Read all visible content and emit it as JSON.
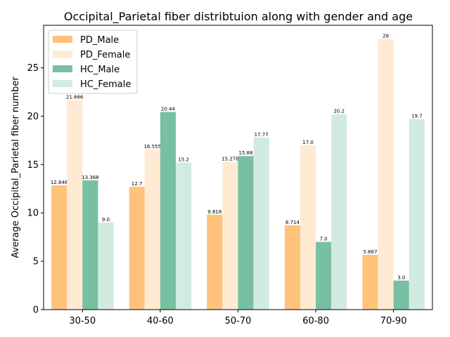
{
  "chart_data": {
    "type": "bar",
    "title": "Occipital_Parietal fiber distribtuion along with gender and age",
    "xlabel": "",
    "ylabel": "Average Occipital_Parietal fiber number",
    "categories": [
      "30-50",
      "40-60",
      "50-70",
      "60-80",
      "70-90"
    ],
    "ylim": [
      0,
      29.4
    ],
    "yticks": [
      0,
      5,
      10,
      15,
      20,
      25
    ],
    "grid": false,
    "legend_position": "top-left",
    "series": [
      {
        "name": "PD_Male",
        "color": "#ffc27a",
        "values": [
          12.846,
          12.7,
          9.818,
          8.714,
          5.667
        ],
        "labels": [
          "12.846",
          "12.7",
          "9.818",
          "8.714",
          "5.667"
        ]
      },
      {
        "name": "PD_Female",
        "color": "#ffebd3",
        "values": [
          21.666,
          16.555,
          15.278,
          17.0,
          28
        ],
        "labels": [
          "21.666",
          "16.555",
          "15.278",
          "17.0",
          "28"
        ]
      },
      {
        "name": "HC_Male",
        "color": "#78c0a2",
        "values": [
          13.368,
          20.44,
          15.88,
          7.0,
          3.0
        ],
        "labels": [
          "13.368",
          "20.44",
          "15.88",
          "7.0",
          "3.0"
        ]
      },
      {
        "name": "HC_Female",
        "color": "#d2ebe1",
        "values": [
          9.0,
          15.2,
          17.77,
          20.2,
          19.7
        ],
        "labels": [
          "9.0",
          "15.2",
          "17.77",
          "20.2",
          "19.7"
        ]
      }
    ]
  }
}
